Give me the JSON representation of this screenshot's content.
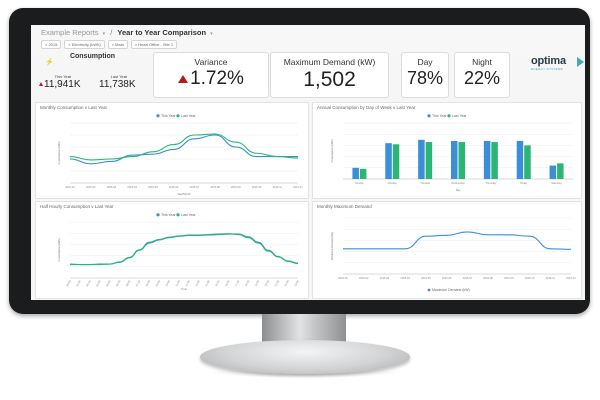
{
  "breadcrumb": {
    "root": "Example Reports",
    "current": "Year to Year Comparison"
  },
  "filters": [
    "2015",
    "Electricity (kWh)",
    "Main",
    "Head Office - Site 1"
  ],
  "kpis": {
    "consumption": {
      "title": "Consumption",
      "this_year_label": "This Year",
      "this_year_value": "11,941K",
      "last_year_label": "Last Year",
      "last_year_value": "11,738K"
    },
    "variance": {
      "title": "Variance",
      "value": "1.72%"
    },
    "max_demand": {
      "title": "Maximum Demand (kW)",
      "value": "1,502"
    },
    "day": {
      "title": "Day",
      "value": "78%"
    },
    "night": {
      "title": "Night",
      "value": "22%"
    }
  },
  "logo": {
    "name": "optima",
    "tagline": "ENERGY SYSTEMS"
  },
  "colors": {
    "this_year": "#3a8fd6",
    "last_year": "#2bb673",
    "max_demand": "#3a8fd6",
    "variance_arrow": "#b11d1d",
    "monitor": "#1b1c1e"
  },
  "chart_data": [
    {
      "type": "line",
      "title": "Monthly Consumption v Last Year",
      "xlabel": "Year/Month",
      "ylabel": "Consumption (kWh)",
      "categories": [
        "2015-01",
        "2015-02",
        "2015-03",
        "2015-04",
        "2015-05",
        "2015-06",
        "2015-07",
        "2015-08",
        "2015-09",
        "2015-10",
        "2015-11",
        "2015-12"
      ],
      "series": [
        {
          "name": "This Year",
          "values": [
            0.5,
            0.4,
            0.45,
            0.58,
            0.6,
            0.7,
            0.92,
            1.0,
            0.75,
            0.55,
            0.55,
            0.55
          ]
        },
        {
          "name": "Last Year",
          "values": [
            0.55,
            0.48,
            0.5,
            0.55,
            0.65,
            0.8,
            1.0,
            1.02,
            0.85,
            0.62,
            0.55,
            0.52
          ]
        }
      ],
      "ylim": [
        0,
        1.25
      ],
      "legend": "top"
    },
    {
      "type": "bar",
      "title": "Annual Consumption by Day of Week v Last Year",
      "xlabel": "Day",
      "ylabel": "Consumption (kWh)",
      "categories": [
        "Sunday",
        "Monday",
        "Tuesday",
        "Wednesday",
        "Thursday",
        "Friday",
        "Saturday"
      ],
      "series": [
        {
          "name": "This Year",
          "values": [
            0.5,
            1.6,
            1.75,
            1.7,
            1.7,
            1.7,
            0.6
          ]
        },
        {
          "name": "Last Year",
          "values": [
            0.45,
            1.55,
            1.65,
            1.65,
            1.65,
            1.5,
            0.7
          ]
        }
      ],
      "ylim": [
        0,
        2.5
      ],
      "legend": "top"
    },
    {
      "type": "line",
      "title": "Half Hourly Consumption v Last Year",
      "xlabel": "Time",
      "ylabel": "Consumption (kWh)",
      "categories": [
        "00:00",
        "01:00",
        "02:00",
        "03:00",
        "04:00",
        "05:00",
        "06:00",
        "07:00",
        "08:00",
        "09:00",
        "10:00",
        "11:00",
        "12:00",
        "13:00",
        "14:00",
        "15:00",
        "16:00",
        "17:00",
        "18:00",
        "19:00",
        "20:00",
        "21:00",
        "22:00",
        "23:00"
      ],
      "series": [
        {
          "name": "This Year",
          "values": [
            0.3,
            0.3,
            0.3,
            0.31,
            0.31,
            0.35,
            0.45,
            0.62,
            0.78,
            0.85,
            0.9,
            0.93,
            0.95,
            0.95,
            0.96,
            0.97,
            0.98,
            0.98,
            0.92,
            0.8,
            0.62,
            0.48,
            0.38,
            0.33
          ]
        },
        {
          "name": "Last Year",
          "values": [
            0.31,
            0.3,
            0.3,
            0.3,
            0.31,
            0.36,
            0.46,
            0.63,
            0.8,
            0.86,
            0.91,
            0.94,
            0.96,
            0.96,
            0.97,
            0.98,
            0.99,
            0.97,
            0.9,
            0.78,
            0.6,
            0.47,
            0.37,
            0.32
          ]
        }
      ],
      "ylim": [
        0,
        1.25
      ],
      "legend": "top"
    },
    {
      "type": "line",
      "title": "Monthly Maximum Demand",
      "xlabel": "",
      "ylabel": "Maximum Demand (kW)",
      "categories": [
        "2015-01",
        "2015-02",
        "2015-03",
        "2015-04",
        "2015-05",
        "2015-06",
        "2015-07",
        "2015-08",
        "2015-09",
        "2015-10",
        "2015-11",
        "2015-12"
      ],
      "series": [
        {
          "name": "Maximum Demand (kW)",
          "values": [
            900,
            900,
            900,
            900,
            1350,
            1380,
            1502,
            1400,
            1400,
            1350,
            900,
            880
          ]
        }
      ],
      "ylim": [
        0,
        2000
      ],
      "legend": "bottom"
    }
  ]
}
